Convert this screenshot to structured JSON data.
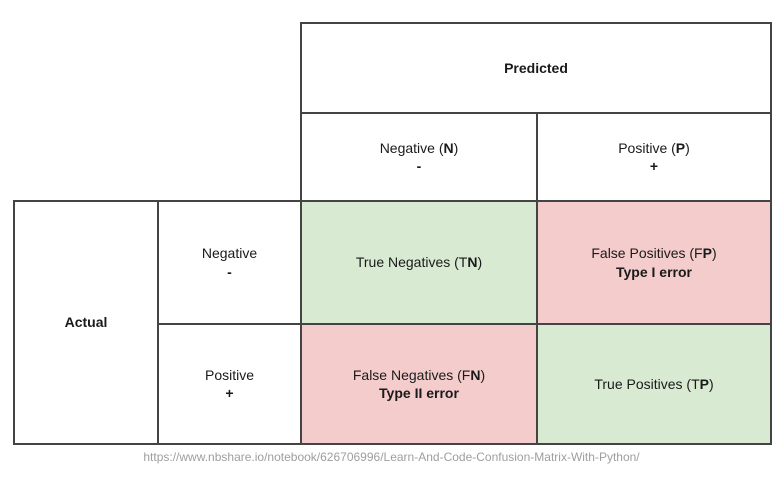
{
  "diagram": {
    "predicted": {
      "title": "Predicted",
      "columns": [
        {
          "name_prefix": "Negative (",
          "name_bold": "N",
          "name_suffix": ")",
          "sign": "-"
        },
        {
          "name_prefix": "Positive (",
          "name_bold": "P",
          "name_suffix": ")",
          "sign": "+"
        }
      ]
    },
    "actual": {
      "title": "Actual",
      "rows": [
        {
          "label": "Negative",
          "sign": "-"
        },
        {
          "label": "Positive",
          "sign": "+"
        }
      ]
    },
    "cells": {
      "tn": {
        "prefix": "True Negatives (T",
        "bold": "N",
        "suffix": ")",
        "note": ""
      },
      "fp": {
        "prefix": "False Positives (F",
        "bold": "P",
        "suffix": ")",
        "note": "Type I error"
      },
      "fn": {
        "prefix": "False Negatives (F",
        "bold": "N",
        "suffix": ")",
        "note": "Type II error"
      },
      "tp": {
        "prefix": "True Positives (T",
        "bold": "P",
        "suffix": ")",
        "note": ""
      }
    }
  },
  "footer": {
    "source_url": "https://www.nbshare.io/notebook/626706996/Learn-And-Code-Confusion-Matrix-With-Python/"
  },
  "colors": {
    "correct_cell_green": "#d9ead3",
    "error_cell_red": "#f4cccc",
    "border": "#444444",
    "url_gray": "#9e9e9e"
  }
}
